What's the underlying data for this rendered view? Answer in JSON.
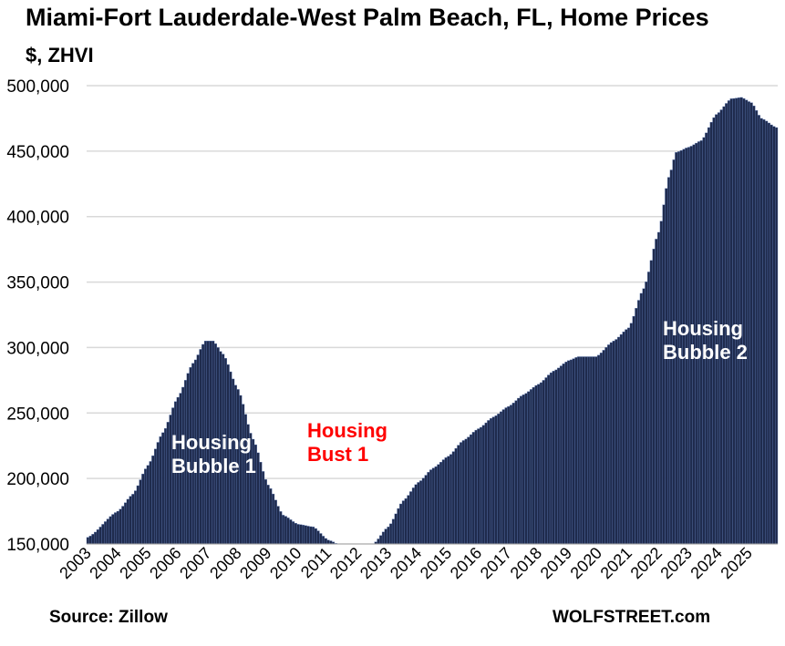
{
  "title": "Miami-Fort Lauderdale-West Palm Beach, FL, Home Prices",
  "subtitle": "$, ZHVI",
  "source": "Source: Zillow",
  "brand": "WOLFSTREET.com",
  "annotations": {
    "bubble1": {
      "line1": "Housing",
      "line2": "Bubble 1",
      "color": "#ffffff"
    },
    "bust1": {
      "line1": "Housing",
      "line2": "Bust 1",
      "color": "#ff0000"
    },
    "bubble2": {
      "line1": "Housing",
      "line2": "Bubble 2",
      "color": "#ffffff"
    }
  },
  "colors": {
    "bar": "#1f2b4d",
    "bar_edge": "#5a76b0",
    "grid": "#d9d9d9"
  },
  "chart_data": {
    "type": "bar",
    "title": "Miami-Fort Lauderdale-West Palm Beach, FL, Home Prices",
    "ylabel": "$, ZHVI",
    "ylim": [
      150000,
      500000
    ],
    "yticks": [
      "150,000",
      "200,000",
      "250,000",
      "300,000",
      "350,000",
      "400,000",
      "450,000",
      "500,000"
    ],
    "ytick_values": [
      150000,
      200000,
      250000,
      300000,
      350000,
      400000,
      450000,
      500000
    ],
    "xticks": [
      "2003",
      "2004",
      "2005",
      "2006",
      "2007",
      "2008",
      "2009",
      "2010",
      "2011",
      "2012",
      "2013",
      "2014",
      "2015",
      "2016",
      "2017",
      "2018",
      "2019",
      "2020",
      "2021",
      "2022",
      "2023",
      "2024",
      "2025"
    ],
    "grid": true,
    "frequency": "monthly",
    "start": "2003-01",
    "end": "2025-12",
    "anchors": [
      [
        "2003-01",
        155000
      ],
      [
        "2004-01",
        175000
      ],
      [
        "2004-07",
        188000
      ],
      [
        "2005-01",
        210000
      ],
      [
        "2005-07",
        235000
      ],
      [
        "2006-01",
        262000
      ],
      [
        "2006-07",
        288000
      ],
      [
        "2006-12",
        305000
      ],
      [
        "2007-03",
        305000
      ],
      [
        "2007-07",
        295000
      ],
      [
        "2008-01",
        268000
      ],
      [
        "2008-07",
        230000
      ],
      [
        "2009-01",
        195000
      ],
      [
        "2009-07",
        172000
      ],
      [
        "2010-01",
        165000
      ],
      [
        "2010-07",
        163000
      ],
      [
        "2011-01",
        153000
      ],
      [
        "2011-07",
        148000
      ],
      [
        "2012-01",
        146000
      ],
      [
        "2012-07",
        150000
      ],
      [
        "2013-01",
        163000
      ],
      [
        "2013-07",
        183000
      ],
      [
        "2014-01",
        197000
      ],
      [
        "2014-07",
        208000
      ],
      [
        "2015-01",
        217000
      ],
      [
        "2015-07",
        229000
      ],
      [
        "2016-01",
        238000
      ],
      [
        "2016-07",
        247000
      ],
      [
        "2017-01",
        255000
      ],
      [
        "2017-07",
        264000
      ],
      [
        "2018-01",
        272000
      ],
      [
        "2018-07",
        282000
      ],
      [
        "2019-01",
        290000
      ],
      [
        "2019-05",
        293000
      ],
      [
        "2019-12",
        293000
      ],
      [
        "2020-07",
        305000
      ],
      [
        "2021-01",
        315000
      ],
      [
        "2021-07",
        345000
      ],
      [
        "2022-01",
        388000
      ],
      [
        "2022-05",
        430000
      ],
      [
        "2022-08",
        449000
      ],
      [
        "2023-01",
        453000
      ],
      [
        "2023-06",
        458000
      ],
      [
        "2023-12",
        478000
      ],
      [
        "2024-06",
        490000
      ],
      [
        "2024-10",
        491000
      ],
      [
        "2025-02",
        487000
      ],
      [
        "2025-06",
        475000
      ],
      [
        "2025-12",
        468000
      ]
    ]
  }
}
